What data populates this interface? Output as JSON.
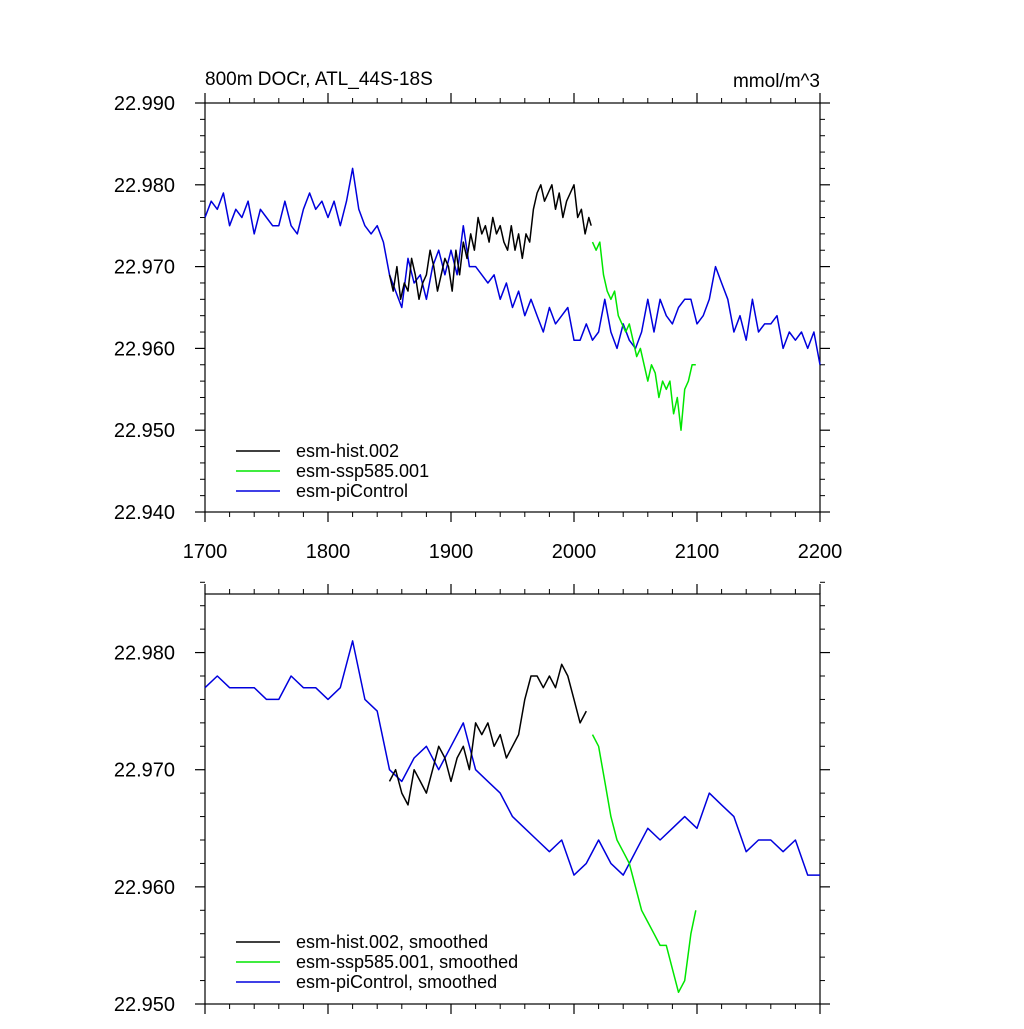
{
  "colors": {
    "hist": "#000000",
    "ssp": "#00e600",
    "pic": "#0000dd",
    "axis": "#000000"
  },
  "chart_data": [
    {
      "type": "line",
      "title": "800m DOCr, ATL_44S-18S",
      "units": "mmol/m^3",
      "xlim": [
        1700,
        2200
      ],
      "ylim": [
        22.94,
        22.99
      ],
      "x_ticks": [
        1700,
        1800,
        1900,
        2000,
        2100,
        2200
      ],
      "x_tick_labels": [
        "1700",
        "1800",
        "1900",
        "2000",
        "2100",
        "2200"
      ],
      "y_ticks": [
        22.94,
        22.95,
        22.96,
        22.97,
        22.98,
        22.99
      ],
      "y_tick_labels": [
        "22.940",
        "22.950",
        "22.960",
        "22.970",
        "22.980",
        "22.990"
      ],
      "legend": [
        "esm-hist.002",
        "esm-ssp585.001",
        "esm-piControl"
      ],
      "legend_location": "bottom-left",
      "series": [
        {
          "name": "esm-hist.002",
          "color_key": "hist",
          "x": [
            1850,
            1853,
            1856,
            1859,
            1862,
            1865,
            1868,
            1871,
            1874,
            1877,
            1880,
            1883,
            1886,
            1889,
            1892,
            1895,
            1898,
            1901,
            1904,
            1907,
            1910,
            1913,
            1916,
            1919,
            1922,
            1925,
            1928,
            1931,
            1934,
            1937,
            1940,
            1943,
            1946,
            1949,
            1952,
            1955,
            1958,
            1961,
            1964,
            1967,
            1970,
            1973,
            1976,
            1979,
            1982,
            1985,
            1988,
            1991,
            1994,
            1997,
            2000,
            2003,
            2006,
            2009,
            2012,
            2014
          ],
          "values": [
            22.969,
            22.967,
            22.97,
            22.966,
            22.968,
            22.967,
            22.971,
            22.969,
            22.966,
            22.968,
            22.969,
            22.972,
            22.97,
            22.967,
            22.969,
            22.971,
            22.97,
            22.967,
            22.972,
            22.969,
            22.973,
            22.971,
            22.974,
            22.972,
            22.976,
            22.974,
            22.975,
            22.973,
            22.976,
            22.974,
            22.975,
            22.973,
            22.972,
            22.975,
            22.972,
            22.974,
            22.971,
            22.974,
            22.973,
            22.977,
            22.979,
            22.98,
            22.978,
            22.979,
            22.98,
            22.977,
            22.979,
            22.976,
            22.978,
            22.979,
            22.98,
            22.976,
            22.977,
            22.974,
            22.976,
            22.975
          ]
        },
        {
          "name": "esm-ssp585.001",
          "color_key": "ssp",
          "x": [
            2015,
            2018,
            2021,
            2024,
            2027,
            2030,
            2033,
            2036,
            2039,
            2042,
            2045,
            2048,
            2051,
            2054,
            2057,
            2060,
            2063,
            2066,
            2069,
            2072,
            2075,
            2078,
            2081,
            2084,
            2087,
            2090,
            2093,
            2096,
            2099
          ],
          "values": [
            22.973,
            22.972,
            22.973,
            22.969,
            22.967,
            22.966,
            22.967,
            22.964,
            22.963,
            22.962,
            22.963,
            22.961,
            22.959,
            22.96,
            22.958,
            22.956,
            22.958,
            22.957,
            22.954,
            22.956,
            22.955,
            22.956,
            22.952,
            22.954,
            22.95,
            22.955,
            22.956,
            22.958,
            22.958
          ]
        },
        {
          "name": "esm-piControl",
          "color_key": "pic",
          "x": [
            1700,
            1705,
            1710,
            1715,
            1720,
            1725,
            1730,
            1735,
            1740,
            1745,
            1750,
            1755,
            1760,
            1765,
            1770,
            1775,
            1780,
            1785,
            1790,
            1795,
            1800,
            1805,
            1810,
            1815,
            1820,
            1825,
            1830,
            1835,
            1840,
            1845,
            1850,
            1855,
            1860,
            1865,
            1870,
            1875,
            1880,
            1885,
            1890,
            1895,
            1900,
            1905,
            1910,
            1915,
            1920,
            1925,
            1930,
            1935,
            1940,
            1945,
            1950,
            1955,
            1960,
            1965,
            1970,
            1975,
            1980,
            1985,
            1990,
            1995,
            2000,
            2005,
            2010,
            2015,
            2020,
            2025,
            2030,
            2035,
            2040,
            2045,
            2050,
            2055,
            2060,
            2065,
            2070,
            2075,
            2080,
            2085,
            2090,
            2095,
            2100,
            2105,
            2110,
            2115,
            2120,
            2125,
            2130,
            2135,
            2140,
            2145,
            2150,
            2155,
            2160,
            2165,
            2170,
            2175,
            2180,
            2185,
            2190,
            2195,
            2200
          ],
          "values": [
            22.976,
            22.978,
            22.977,
            22.979,
            22.975,
            22.977,
            22.976,
            22.978,
            22.974,
            22.977,
            22.976,
            22.975,
            22.975,
            22.978,
            22.975,
            22.974,
            22.977,
            22.979,
            22.977,
            22.978,
            22.976,
            22.978,
            22.975,
            22.978,
            22.982,
            22.977,
            22.975,
            22.974,
            22.975,
            22.973,
            22.969,
            22.967,
            22.965,
            22.971,
            22.968,
            22.969,
            22.966,
            22.97,
            22.972,
            22.969,
            22.972,
            22.969,
            22.975,
            22.97,
            22.97,
            22.969,
            22.968,
            22.969,
            22.966,
            22.968,
            22.965,
            22.967,
            22.964,
            22.966,
            22.964,
            22.962,
            22.965,
            22.963,
            22.964,
            22.965,
            22.961,
            22.961,
            22.963,
            22.961,
            22.962,
            22.966,
            22.962,
            22.96,
            22.963,
            22.961,
            22.96,
            22.962,
            22.966,
            22.962,
            22.966,
            22.964,
            22.963,
            22.965,
            22.966,
            22.966,
            22.963,
            22.964,
            22.966,
            22.97,
            22.968,
            22.966,
            22.962,
            22.964,
            22.961,
            22.966,
            22.962,
            22.963,
            22.963,
            22.964,
            22.96,
            22.962,
            22.961,
            22.962,
            22.96,
            22.962,
            22.958
          ]
        }
      ]
    },
    {
      "type": "line",
      "title": "",
      "xlim": [
        1700,
        2200
      ],
      "ylim": [
        22.95,
        22.985
      ],
      "x_ticks": [
        1700,
        1800,
        1900,
        2000,
        2100,
        2200
      ],
      "y_ticks": [
        22.95,
        22.96,
        22.97,
        22.98
      ],
      "y_tick_labels": [
        "22.950",
        "22.960",
        "22.970",
        "22.980"
      ],
      "legend": [
        "esm-hist.002, smoothed",
        "esm-ssp585.001, smoothed",
        "esm-piControl, smoothed"
      ],
      "legend_location": "bottom-left",
      "series": [
        {
          "name": "esm-hist.002, smoothed",
          "color_key": "hist",
          "x": [
            1850,
            1855,
            1860,
            1865,
            1870,
            1875,
            1880,
            1885,
            1890,
            1895,
            1900,
            1905,
            1910,
            1915,
            1920,
            1925,
            1930,
            1935,
            1940,
            1945,
            1950,
            1955,
            1960,
            1965,
            1970,
            1975,
            1980,
            1985,
            1990,
            1995,
            2000,
            2005,
            2010
          ],
          "values": [
            22.969,
            22.97,
            22.968,
            22.967,
            22.97,
            22.969,
            22.968,
            22.97,
            22.972,
            22.971,
            22.969,
            22.971,
            22.972,
            22.97,
            22.974,
            22.973,
            22.974,
            22.972,
            22.973,
            22.971,
            22.972,
            22.973,
            22.976,
            22.978,
            22.978,
            22.977,
            22.978,
            22.977,
            22.979,
            22.978,
            22.976,
            22.974,
            22.975
          ]
        },
        {
          "name": "esm-ssp585.001, smoothed",
          "color_key": "ssp",
          "x": [
            2015,
            2020,
            2025,
            2030,
            2035,
            2040,
            2045,
            2050,
            2055,
            2060,
            2065,
            2070,
            2075,
            2080,
            2085,
            2090,
            2095,
            2099
          ],
          "values": [
            22.973,
            22.972,
            22.969,
            22.966,
            22.964,
            22.963,
            22.962,
            22.96,
            22.958,
            22.957,
            22.956,
            22.955,
            22.955,
            22.953,
            22.951,
            22.952,
            22.956,
            22.958
          ]
        },
        {
          "name": "esm-piControl, smoothed",
          "color_key": "pic",
          "x": [
            1700,
            1710,
            1720,
            1730,
            1740,
            1750,
            1760,
            1770,
            1780,
            1790,
            1800,
            1810,
            1820,
            1830,
            1840,
            1850,
            1860,
            1870,
            1880,
            1890,
            1900,
            1910,
            1920,
            1930,
            1940,
            1950,
            1960,
            1970,
            1980,
            1990,
            2000,
            2010,
            2020,
            2030,
            2040,
            2050,
            2060,
            2070,
            2080,
            2090,
            2100,
            2110,
            2120,
            2130,
            2140,
            2150,
            2160,
            2170,
            2180,
            2190,
            2200
          ],
          "values": [
            22.977,
            22.978,
            22.977,
            22.977,
            22.977,
            22.976,
            22.976,
            22.978,
            22.977,
            22.977,
            22.976,
            22.977,
            22.981,
            22.976,
            22.975,
            22.97,
            22.969,
            22.971,
            22.972,
            22.97,
            22.972,
            22.974,
            22.97,
            22.969,
            22.968,
            22.966,
            22.965,
            22.964,
            22.963,
            22.964,
            22.961,
            22.962,
            22.964,
            22.962,
            22.961,
            22.963,
            22.965,
            22.964,
            22.965,
            22.966,
            22.965,
            22.968,
            22.967,
            22.966,
            22.963,
            22.964,
            22.964,
            22.963,
            22.964,
            22.961,
            22.961
          ]
        }
      ]
    }
  ]
}
